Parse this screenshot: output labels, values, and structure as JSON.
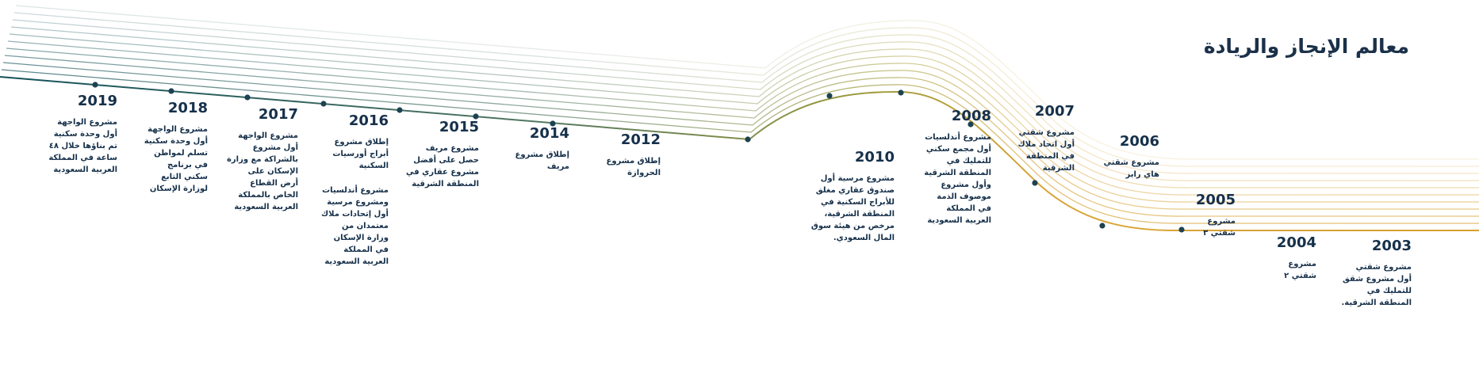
{
  "title": "معالم الإنجاز والريادة",
  "colors": {
    "teal": "#13505a",
    "olive": "#98973a",
    "gold": "#dca436",
    "dot": "#1d4252"
  },
  "milestones": [
    {
      "year": "2019",
      "text": "مشروع الواجهة\nأول وحدة سكنية\nتم بناؤها خلال ٤٨\nساعة في المملكة\nالعربية السعودية"
    },
    {
      "year": "2018",
      "text": "مشروع الواجهة\nأول وحدة سكنية\nتسلم لمواطن\nفي برنامج\nسكني التابع\nلوزارة الإسكان"
    },
    {
      "year": "2017",
      "text": "مشروع الواجهة\nأول مشروع\nبالشراكة مع وزارة\nالإسكان على\nأرض القطاع\nالخاص بالمملكة\nالعربية السعودية"
    },
    {
      "year": "2016",
      "text": "إطلاق مشروع\nأبراج أورسيات\nالسكنية",
      "text2": "مشروع أندلسيات\nومشروع مرسية\nأول إتحادات ملاك\nمعتمدان من\nوزارة الإسكان\nفي المملكة\nالعربية السعودية"
    },
    {
      "year": "2015",
      "text": "مشروع مريف\nحصل على أفضل\nمشروع عقاري في\nالمنطقة الشرقية"
    },
    {
      "year": "2014",
      "text": "إطلاق مشروع\nمريف"
    },
    {
      "year": "2012",
      "text": "إطلاق مشروع\nالحروازة"
    },
    {
      "year": "2010",
      "text": "مشروع مرسية أول\nصندوق عقاري مغلق\nللأبراج السكنية في\nالمنطقة الشرقية،\nمرخص من هيئة سوق\nالمال السعودي."
    },
    {
      "year": "2008",
      "text": "مشروع أندلسيات\nأول مجمع سكني\nللتمليك في\nالمنطقة الشرقية\nوأول مشروع\nموصوف الذمة\nفي المملكة\nالعربية السعودية"
    },
    {
      "year": "2007",
      "text": "مشروع شقتي\nأول اتحاد ملاك\nفي المنطقة\nالشرقية"
    },
    {
      "year": "2006",
      "text": "مشروع شقتي\nهاي رايز"
    },
    {
      "year": "2005",
      "text": "مشروع\nشقتي ٣"
    },
    {
      "year": "2004",
      "text": "مشروع\nشقتي ٢"
    },
    {
      "year": "2003",
      "text": "مشروع شقتي\nأول مشروع شقق\nللتمليك في\nالمنطقة الشرقية."
    }
  ]
}
